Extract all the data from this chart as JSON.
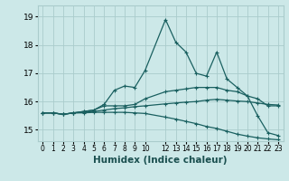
{
  "xlabel": "Humidex (Indice chaleur)",
  "ylabel": "",
  "xlim": [
    -0.5,
    23.5
  ],
  "ylim": [
    14.6,
    19.4
  ],
  "yticks": [
    15,
    16,
    17,
    18,
    19
  ],
  "xtick_positions": [
    0,
    1,
    2,
    3,
    4,
    5,
    6,
    7,
    8,
    9,
    10,
    12,
    13,
    14,
    15,
    16,
    17,
    18,
    19,
    20,
    21,
    22,
    23
  ],
  "xtick_labels": [
    "0",
    "1",
    "2",
    "3",
    "4",
    "5",
    "6",
    "7",
    "8",
    "9",
    "10",
    "12",
    "13",
    "14",
    "15",
    "16",
    "17",
    "18",
    "19",
    "20",
    "21",
    "22",
    "23"
  ],
  "background_color": "#cce8e8",
  "grid_color": "#aacccc",
  "line_color": "#1a6060",
  "lines": [
    {
      "x": [
        0,
        1,
        2,
        3,
        4,
        5,
        6,
        7,
        8,
        9,
        10,
        12,
        13,
        14,
        15,
        16,
        17,
        18,
        19,
        20,
        21,
        22,
        23
      ],
      "y": [
        15.6,
        15.6,
        15.55,
        15.6,
        15.65,
        15.7,
        15.9,
        16.4,
        16.55,
        16.5,
        17.1,
        18.9,
        18.1,
        17.75,
        17.0,
        16.9,
        17.75,
        16.8,
        16.5,
        16.2,
        15.5,
        14.9,
        14.8
      ]
    },
    {
      "x": [
        0,
        1,
        2,
        3,
        4,
        5,
        6,
        7,
        8,
        9,
        10,
        12,
        13,
        14,
        15,
        16,
        17,
        18,
        19,
        20,
        21,
        22,
        23
      ],
      "y": [
        15.6,
        15.6,
        15.55,
        15.6,
        15.65,
        15.7,
        15.85,
        15.85,
        15.85,
        15.9,
        16.1,
        16.35,
        16.4,
        16.45,
        16.5,
        16.5,
        16.5,
        16.4,
        16.35,
        16.2,
        16.1,
        15.85,
        15.85
      ]
    },
    {
      "x": [
        0,
        1,
        2,
        3,
        4,
        5,
        6,
        7,
        8,
        9,
        10,
        12,
        13,
        14,
        15,
        16,
        17,
        18,
        19,
        20,
        21,
        22,
        23
      ],
      "y": [
        15.6,
        15.6,
        15.55,
        15.6,
        15.62,
        15.65,
        15.7,
        15.75,
        15.78,
        15.82,
        15.85,
        15.92,
        15.95,
        15.98,
        16.0,
        16.05,
        16.08,
        16.05,
        16.02,
        16.0,
        15.95,
        15.9,
        15.88
      ]
    },
    {
      "x": [
        0,
        1,
        2,
        3,
        4,
        5,
        6,
        7,
        8,
        9,
        10,
        12,
        13,
        14,
        15,
        16,
        17,
        18,
        19,
        20,
        21,
        22,
        23
      ],
      "y": [
        15.6,
        15.6,
        15.55,
        15.6,
        15.6,
        15.62,
        15.62,
        15.62,
        15.62,
        15.6,
        15.58,
        15.45,
        15.38,
        15.3,
        15.22,
        15.12,
        15.05,
        14.95,
        14.85,
        14.78,
        14.72,
        14.68,
        14.65
      ]
    }
  ]
}
